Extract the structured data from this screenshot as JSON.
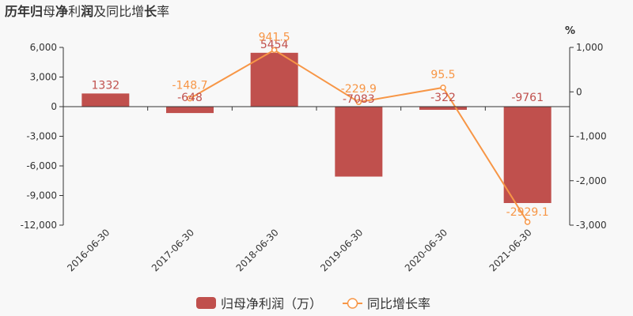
{
  "chart_data": {
    "type": "bar",
    "title_parts": [
      {
        "text": "历年",
        "bold": true
      },
      {
        "text": "归",
        "bold": true
      },
      {
        "text": "母",
        "bold": false
      },
      {
        "text": "净",
        "bold": true
      },
      {
        "text": "利",
        "bold": false
      },
      {
        "text": "润",
        "bold": true
      },
      {
        "text": "及同比增",
        "bold": false
      },
      {
        "text": "长",
        "bold": true
      },
      {
        "text": "率",
        "bold": false
      }
    ],
    "categories": [
      "2016-06-30",
      "2017-06-30",
      "2018-06-30",
      "2019-06-30",
      "2020-06-30",
      "2021-06-30"
    ],
    "y_left": {
      "ylim": [
        -12000,
        6000
      ],
      "ticks": [
        6000,
        3000,
        0,
        -3000,
        -6000,
        -9000,
        -12000
      ],
      "tick_labels": [
        "6,000",
        "3,000",
        "0",
        "-3,000",
        "-6,000",
        "-9,000",
        "-12,000"
      ]
    },
    "y_right": {
      "unit": "%",
      "ylim": [
        -3000,
        1000
      ],
      "ticks": [
        1000,
        0,
        -1000,
        -2000,
        -3000
      ],
      "tick_labels": [
        "1,000",
        "0",
        "-1,000",
        "-2,000",
        "-3,000"
      ]
    },
    "series": [
      {
        "name": "归母净利润（万）",
        "type": "bar",
        "axis": "left",
        "color": "#c0504d",
        "values": [
          1332,
          -648,
          5454,
          -7083,
          -322,
          -9761
        ],
        "labels": [
          "1332",
          "-648",
          "5454",
          "-7083",
          "-322",
          "-9761"
        ]
      },
      {
        "name": "同比增长率",
        "type": "line",
        "axis": "right",
        "color": "#f79646",
        "values": [
          null,
          -148.7,
          941.5,
          -229.9,
          95.5,
          -2929.1
        ],
        "labels": [
          "",
          "-148.7",
          "941.5",
          "-229.9",
          "95.5",
          "-2929.1"
        ]
      }
    ],
    "legend": {
      "position": "bottom-center"
    }
  }
}
